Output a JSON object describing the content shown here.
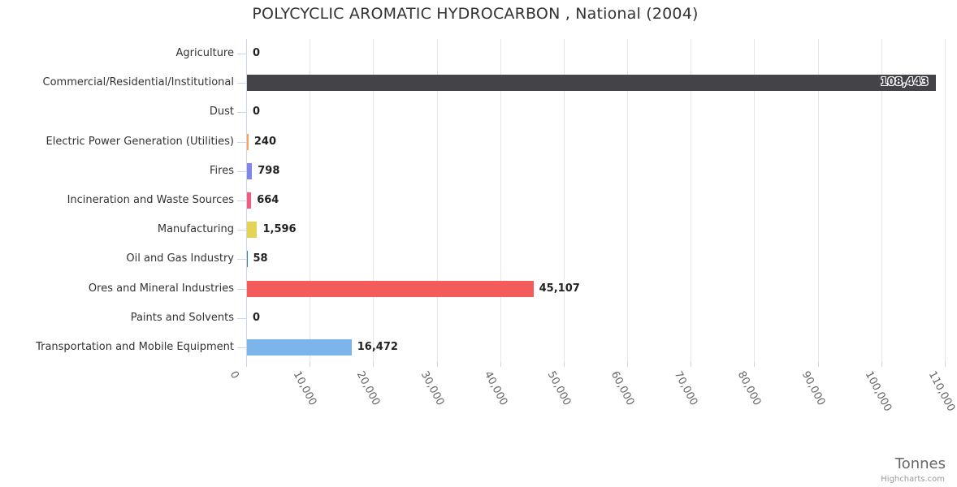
{
  "title": "POLYCYCLIC AROMATIC HYDROCARBON , National (2004)",
  "credits_label": "Highcharts.com",
  "chart_data": {
    "type": "bar",
    "orientation": "horizontal",
    "title": "POLYCYCLIC AROMATIC HYDROCARBON , National (2004)",
    "categories": [
      "Agriculture",
      "Commercial/Residential/Institutional",
      "Dust",
      "Electric Power Generation (Utilities)",
      "Fires",
      "Incineration and Waste Sources",
      "Manufacturing",
      "Oil and Gas Industry",
      "Ores and Mineral Industries",
      "Paints and Solvents",
      "Transportation and Mobile Equipment"
    ],
    "values": [
      0,
      108443,
      0,
      240,
      798,
      664,
      1596,
      58,
      45107,
      0,
      16472
    ],
    "value_labels": [
      "0",
      "108,443",
      "0",
      "240",
      "798",
      "664",
      "1,596",
      "58",
      "45,107",
      "0",
      "16,472"
    ],
    "colors": [
      "#7cb5ec",
      "#434348",
      "#90ed7d",
      "#f7a35c",
      "#8085e9",
      "#f15c80",
      "#e4d354",
      "#2b908f",
      "#f45b5b",
      "#91e8e1",
      "#7cb5ec"
    ],
    "value_axis": {
      "title": "Tonnes",
      "min": 0,
      "max": 110000,
      "tick_interval": 10000,
      "ticks": [
        0,
        10000,
        20000,
        30000,
        40000,
        50000,
        60000,
        70000,
        80000,
        90000,
        100000,
        110000
      ],
      "tick_labels": [
        "0",
        "10,000",
        "20,000",
        "30,000",
        "40,000",
        "50,000",
        "60,000",
        "70,000",
        "80,000",
        "90,000",
        "100,000",
        "110,000"
      ],
      "label_rotation": 62,
      "grid": true
    },
    "legend": "off",
    "data_labels": "on",
    "colors_meaning": {
      "grid_color": "#e6e6e6",
      "axis_color": "#ccd6eb",
      "title_color": "#333333",
      "tick_label_color": "#666666"
    }
  }
}
